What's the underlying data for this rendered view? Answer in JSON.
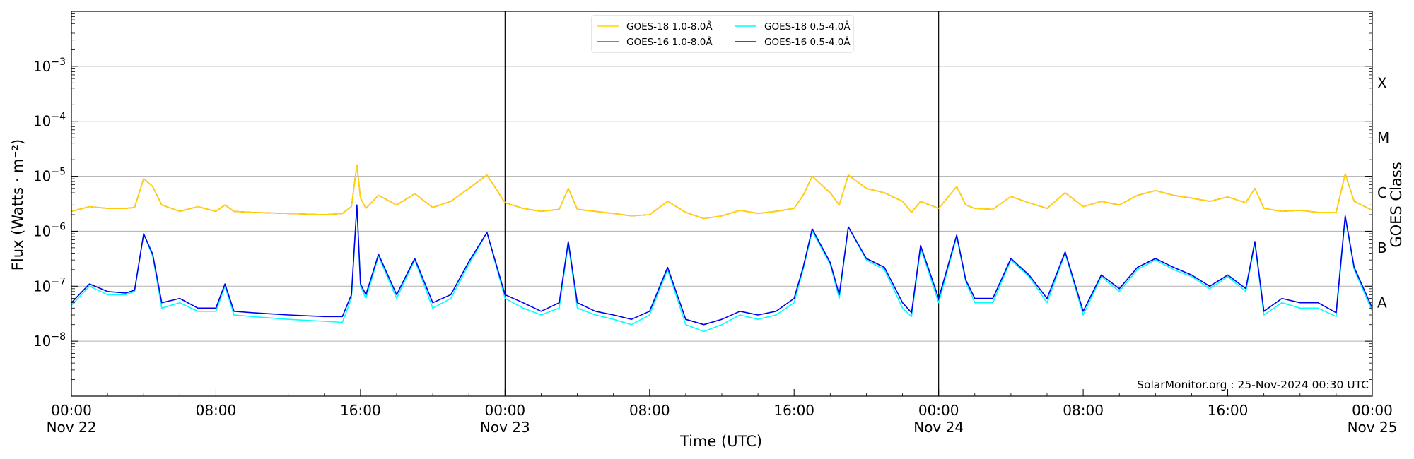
{
  "chart_data": {
    "type": "line",
    "xlabel": "Time (UTC)",
    "ylabel": "Flux (Watts · m⁻²)",
    "y2label": "GOES Class",
    "y_scale": "log",
    "ylim": [
      "1e-9",
      "1e-2"
    ],
    "xlim": [
      "2024-11-22 00:00",
      "2024-11-25 00:00"
    ],
    "grid": "horizontal",
    "legend_position": "top-center",
    "watermark": "SolarMonitor.org : 25-Nov-2024 00:30 UTC",
    "y_ticks": [
      {
        "value": 1e-08,
        "mantissa": "10",
        "exp": "−8"
      },
      {
        "value": 1e-07,
        "mantissa": "10",
        "exp": "−7"
      },
      {
        "value": 1e-06,
        "mantissa": "10",
        "exp": "−6"
      },
      {
        "value": 1e-05,
        "mantissa": "10",
        "exp": "−5"
      },
      {
        "value": 0.0001,
        "mantissa": "10",
        "exp": "−4"
      },
      {
        "value": 0.001,
        "mantissa": "10",
        "exp": "−3"
      }
    ],
    "class_labels": [
      {
        "label": "A",
        "value": 5e-08
      },
      {
        "label": "B",
        "value": 5e-07
      },
      {
        "label": "C",
        "value": 5e-06
      },
      {
        "label": "M",
        "value": 5e-05
      },
      {
        "label": "X",
        "value": 0.0005
      }
    ],
    "x_ticks": [
      {
        "hour": 0,
        "time": "00:00",
        "date": "Nov 22"
      },
      {
        "hour": 8,
        "time": "08:00",
        "date": ""
      },
      {
        "hour": 16,
        "time": "16:00",
        "date": ""
      },
      {
        "hour": 24,
        "time": "00:00",
        "date": "Nov 23"
      },
      {
        "hour": 32,
        "time": "08:00",
        "date": ""
      },
      {
        "hour": 40,
        "time": "16:00",
        "date": ""
      },
      {
        "hour": 48,
        "time": "00:00",
        "date": "Nov 24"
      },
      {
        "hour": 56,
        "time": "08:00",
        "date": ""
      },
      {
        "hour": 64,
        "time": "16:00",
        "date": ""
      },
      {
        "hour": 72,
        "time": "00:00",
        "date": "Nov 25"
      }
    ],
    "day_boundaries": [
      24,
      48
    ],
    "series": [
      {
        "name": "GOES-18 1.0-8.0Å",
        "color": "#ffd700",
        "x": [
          0,
          1,
          2,
          3,
          3.5,
          4,
          4.5,
          5,
          6,
          7,
          8,
          8.5,
          9,
          10,
          12,
          14,
          15,
          15.5,
          15.8,
          16,
          16.3,
          17,
          18,
          19,
          20,
          21,
          22,
          23,
          24,
          25,
          26,
          27,
          27.5,
          28,
          29,
          30,
          31,
          32,
          33,
          34,
          35,
          36,
          37,
          38,
          39,
          40,
          40.5,
          41,
          42,
          42.5,
          43,
          44,
          45,
          46,
          46.5,
          47,
          48,
          49,
          49.5,
          50,
          51,
          52,
          53,
          54,
          55,
          56,
          57,
          58,
          59,
          60,
          61,
          62,
          63,
          64,
          65,
          65.5,
          66,
          67,
          68,
          69,
          70,
          70.5,
          71,
          72
        ],
        "y": [
          2.3e-06,
          2.8e-06,
          2.6e-06,
          2.6e-06,
          2.7e-06,
          9e-06,
          6.5e-06,
          3e-06,
          2.3e-06,
          2.8e-06,
          2.3e-06,
          3e-06,
          2.3e-06,
          2.2e-06,
          2.1e-06,
          2e-06,
          2.1e-06,
          2.8e-06,
          1.6e-05,
          4e-06,
          2.6e-06,
          4.5e-06,
          3e-06,
          4.8e-06,
          2.7e-06,
          3.5e-06,
          6e-06,
          1.05e-05,
          3.3e-06,
          2.6e-06,
          2.3e-06,
          2.5e-06,
          6e-06,
          2.5e-06,
          2.3e-06,
          2.1e-06,
          1.9e-06,
          2e-06,
          3.5e-06,
          2.2e-06,
          1.7e-06,
          1.9e-06,
          2.4e-06,
          2.1e-06,
          2.3e-06,
          2.6e-06,
          4.5e-06,
          1e-05,
          5e-06,
          3e-06,
          1.05e-05,
          6e-06,
          5e-06,
          3.5e-06,
          2.2e-06,
          3.5e-06,
          2.6e-06,
          6.5e-06,
          3e-06,
          2.6e-06,
          2.5e-06,
          4.3e-06,
          3.3e-06,
          2.6e-06,
          5e-06,
          2.8e-06,
          3.5e-06,
          3e-06,
          4.5e-06,
          5.5e-06,
          4.5e-06,
          4e-06,
          3.5e-06,
          4.2e-06,
          3.3e-06,
          6e-06,
          2.6e-06,
          2.3e-06,
          2.4e-06,
          2.2e-06,
          2.2e-06,
          1.1e-05,
          3.5e-06,
          2.4e-06
        ]
      },
      {
        "name": "GOES-16 1.0-8.0Å",
        "color": "#ee2200",
        "x": [
          0,
          1,
          2,
          3,
          3.5,
          4,
          4.5,
          5,
          6,
          7,
          8,
          8.5,
          9,
          10,
          12,
          14,
          15,
          15.5,
          15.8,
          16,
          16.3,
          17,
          18,
          19,
          20,
          21,
          22,
          23,
          24,
          25,
          26,
          27,
          27.5,
          28,
          29,
          30,
          31,
          32,
          33,
          34,
          35,
          36,
          37,
          38,
          39,
          40,
          40.5,
          41,
          42,
          42.5,
          43,
          44,
          45,
          46,
          46.5,
          47,
          48,
          49,
          49.5,
          50,
          51,
          52,
          53,
          54,
          55,
          56,
          57,
          58,
          59,
          60,
          61,
          62,
          63,
          64,
          65,
          65.5,
          66,
          67,
          68,
          69,
          70,
          70.5,
          71,
          72
        ],
        "y": [
          2.3e-06,
          2.8e-06,
          2.6e-06,
          2.6e-06,
          2.7e-06,
          9e-06,
          6.5e-06,
          3e-06,
          2.3e-06,
          2.8e-06,
          2.3e-06,
          3e-06,
          2.3e-06,
          2.2e-06,
          2.1e-06,
          2e-06,
          2.1e-06,
          2.8e-06,
          1.6e-05,
          4e-06,
          2.6e-06,
          4.5e-06,
          3e-06,
          4.8e-06,
          2.7e-06,
          3.5e-06,
          6e-06,
          1.05e-05,
          3.3e-06,
          2.6e-06,
          2.3e-06,
          2.5e-06,
          6e-06,
          2.5e-06,
          2.3e-06,
          2.1e-06,
          1.9e-06,
          2e-06,
          3.5e-06,
          2.2e-06,
          1.7e-06,
          1.9e-06,
          2.4e-06,
          2.1e-06,
          2.3e-06,
          2.6e-06,
          4.5e-06,
          1e-05,
          5e-06,
          3e-06,
          1.05e-05,
          6e-06,
          5e-06,
          3.5e-06,
          2.2e-06,
          3.5e-06,
          2.6e-06,
          6.5e-06,
          3e-06,
          2.6e-06,
          2.5e-06,
          4.3e-06,
          3.3e-06,
          2.6e-06,
          5e-06,
          2.8e-06,
          3.5e-06,
          3e-06,
          4.5e-06,
          5.5e-06,
          4.5e-06,
          4e-06,
          3.5e-06,
          4.2e-06,
          3.3e-06,
          6e-06,
          2.6e-06,
          2.3e-06,
          2.4e-06,
          2.2e-06,
          2.2e-06,
          1.1e-05,
          3.5e-06,
          2.4e-06
        ]
      },
      {
        "name": "GOES-18 0.5-4.0Å",
        "color": "#00ffff",
        "x": [
          0,
          1,
          2,
          3,
          3.5,
          4,
          4.5,
          5,
          6,
          7,
          8,
          8.5,
          9,
          10,
          12,
          14,
          15,
          15.5,
          15.8,
          16,
          16.3,
          17,
          18,
          19,
          20,
          21,
          22,
          23,
          24,
          25,
          26,
          27,
          27.5,
          28,
          29,
          30,
          31,
          32,
          33,
          34,
          35,
          36,
          37,
          38,
          39,
          40,
          40.5,
          41,
          42,
          42.5,
          43,
          44,
          45,
          46,
          46.5,
          47,
          48,
          49,
          49.5,
          50,
          51,
          52,
          53,
          54,
          55,
          56,
          57,
          58,
          59,
          60,
          61,
          62,
          63,
          64,
          65,
          65.5,
          66,
          67,
          68,
          69,
          70,
          70.5,
          71,
          72
        ],
        "y": [
          4.5e-08,
          1e-07,
          7e-08,
          7e-08,
          8e-08,
          9e-07,
          3.5e-07,
          4e-08,
          5e-08,
          3.5e-08,
          3.5e-08,
          1e-07,
          3e-08,
          2.8e-08,
          2.5e-08,
          2.3e-08,
          2.2e-08,
          6e-08,
          3e-06,
          1e-07,
          6e-08,
          3.5e-07,
          6e-08,
          3e-07,
          4e-08,
          6e-08,
          2.5e-07,
          9.5e-07,
          6e-08,
          4e-08,
          3e-08,
          4e-08,
          6e-07,
          4e-08,
          3e-08,
          2.5e-08,
          2e-08,
          3e-08,
          2e-07,
          2e-08,
          1.5e-08,
          2e-08,
          3e-08,
          2.5e-08,
          3e-08,
          5e-08,
          2e-07,
          1e-06,
          2.5e-07,
          6e-08,
          1.2e-06,
          3e-07,
          2e-07,
          4e-08,
          2.8e-08,
          5e-07,
          5e-08,
          8e-07,
          1.2e-07,
          5e-08,
          5e-08,
          3e-07,
          1.5e-07,
          5e-08,
          4e-07,
          3e-08,
          1.5e-07,
          8e-08,
          2e-07,
          3e-07,
          2e-07,
          1.5e-07,
          9e-08,
          1.5e-07,
          8e-08,
          6e-07,
          3e-08,
          5e-08,
          4e-08,
          4e-08,
          2.8e-08,
          1.8e-06,
          2e-07,
          3.5e-08
        ]
      },
      {
        "name": "GOES-16 0.5-4.0Å",
        "color": "#0000ee",
        "x": [
          0,
          1,
          2,
          3,
          3.5,
          4,
          4.5,
          5,
          6,
          7,
          8,
          8.5,
          9,
          10,
          12,
          14,
          15,
          15.5,
          15.8,
          16,
          16.3,
          17,
          18,
          19,
          20,
          21,
          22,
          23,
          24,
          25,
          26,
          27,
          27.5,
          28,
          29,
          30,
          31,
          32,
          33,
          34,
          35,
          36,
          37,
          38,
          39,
          40,
          40.5,
          41,
          42,
          42.5,
          43,
          44,
          45,
          46,
          46.5,
          47,
          48,
          49,
          49.5,
          50,
          51,
          52,
          53,
          54,
          55,
          56,
          57,
          58,
          59,
          60,
          61,
          62,
          63,
          64,
          65,
          65.5,
          66,
          67,
          68,
          69,
          70,
          70.5,
          71,
          72
        ],
        "y": [
          5e-08,
          1.1e-07,
          8e-08,
          7.5e-08,
          8.5e-08,
          9e-07,
          3.8e-07,
          5e-08,
          6e-08,
          4e-08,
          4e-08,
          1.1e-07,
          3.5e-08,
          3.3e-08,
          3e-08,
          2.8e-08,
          2.8e-08,
          7e-08,
          3e-06,
          1.1e-07,
          7e-08,
          3.8e-07,
          7e-08,
          3.2e-07,
          5e-08,
          7e-08,
          2.8e-07,
          9.5e-07,
          7e-08,
          5e-08,
          3.5e-08,
          5e-08,
          6.5e-07,
          5e-08,
          3.5e-08,
          3e-08,
          2.5e-08,
          3.5e-08,
          2.2e-07,
          2.5e-08,
          2e-08,
          2.5e-08,
          3.5e-08,
          3e-08,
          3.5e-08,
          6e-08,
          2.2e-07,
          1.1e-06,
          2.7e-07,
          7e-08,
          1.2e-06,
          3.2e-07,
          2.2e-07,
          5e-08,
          3.3e-08,
          5.5e-07,
          6e-08,
          8.5e-07,
          1.3e-07,
          6e-08,
          6e-08,
          3.2e-07,
          1.6e-07,
          6e-08,
          4.2e-07,
          3.5e-08,
          1.6e-07,
          9e-08,
          2.2e-07,
          3.2e-07,
          2.2e-07,
          1.6e-07,
          1e-07,
          1.6e-07,
          9e-08,
          6.5e-07,
          3.5e-08,
          6e-08,
          5e-08,
          5e-08,
          3.3e-08,
          1.9e-06,
          2.2e-07,
          4e-08
        ]
      }
    ]
  }
}
